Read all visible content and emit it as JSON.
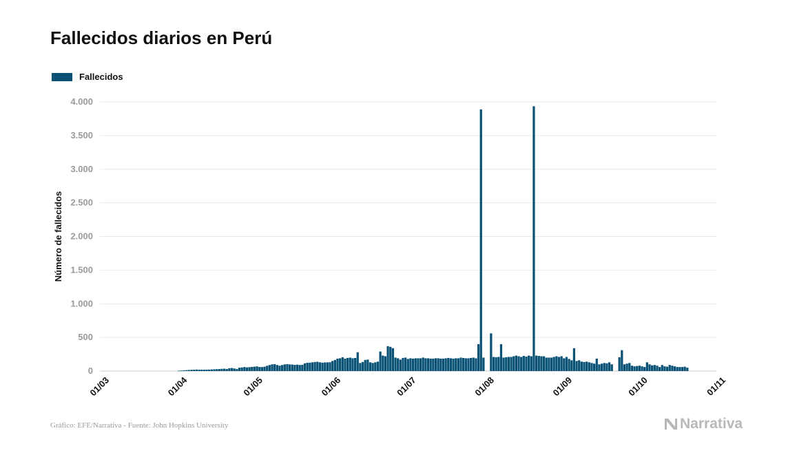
{
  "header": {
    "title": "Fallecidos diarios en Perú"
  },
  "legend": {
    "label": "Fallecidos",
    "color": "#0a5275"
  },
  "footer": {
    "source": "Gráfico: EFE/Narrativa - Fuente: John Hopkins University",
    "brand": "Narrativa",
    "brand_icon": "narrativa-logo-icon"
  },
  "chart_data": {
    "type": "bar",
    "title": "Fallecidos diarios en Perú",
    "xlabel": "",
    "ylabel": "Número de fallecidos",
    "ylim": [
      0,
      4000
    ],
    "yticks": [
      0,
      500,
      1000,
      1500,
      2000,
      2500,
      3000,
      3500,
      4000
    ],
    "ytick_labels": [
      "0",
      "500",
      "1.000",
      "1.500",
      "2.000",
      "2.500",
      "3.000",
      "3.500",
      "4.000"
    ],
    "xticks": [
      {
        "label": "01/03",
        "date": "2020-03-01"
      },
      {
        "label": "01/04",
        "date": "2020-04-01"
      },
      {
        "label": "01/05",
        "date": "2020-05-01"
      },
      {
        "label": "01/06",
        "date": "2020-06-01"
      },
      {
        "label": "01/07",
        "date": "2020-07-01"
      },
      {
        "label": "01/08",
        "date": "2020-08-01"
      },
      {
        "label": "01/09",
        "date": "2020-09-01"
      },
      {
        "label": "01/10",
        "date": "2020-10-01"
      },
      {
        "label": "01/11",
        "date": "2020-11-01"
      }
    ],
    "grid": true,
    "legend_position": "top-left",
    "series": [
      {
        "name": "Fallecidos",
        "color": "#0a5275",
        "start_date": "2020-03-01",
        "values": [
          0,
          0,
          0,
          0,
          0,
          0,
          0,
          0,
          0,
          0,
          0,
          0,
          0,
          0,
          0,
          0,
          0,
          0,
          0,
          0,
          0,
          0,
          0,
          0,
          0,
          0,
          0,
          0,
          0,
          0,
          0,
          5,
          8,
          11,
          14,
          16,
          19,
          20,
          22,
          20,
          20,
          20,
          21,
          22,
          24,
          27,
          28,
          30,
          33,
          35,
          30,
          42,
          45,
          38,
          30,
          50,
          54,
          60,
          55,
          58,
          62,
          65,
          70,
          60,
          60,
          65,
          78,
          90,
          100,
          103,
          90,
          80,
          90,
          100,
          103,
          98,
          97,
          92,
          95,
          90,
          93,
          115,
          123,
          125,
          130,
          135,
          138,
          130,
          125,
          128,
          130,
          131,
          150,
          165,
          185,
          190,
          205,
          185,
          195,
          200,
          190,
          195,
          280,
          120,
          135,
          165,
          170,
          130,
          120,
          130,
          140,
          290,
          230,
          220,
          370,
          360,
          340,
          200,
          190,
          170,
          195,
          200,
          180,
          190,
          185,
          190,
          190,
          190,
          200,
          190,
          190,
          185,
          185,
          190,
          190,
          185,
          185,
          190,
          195,
          190,
          185,
          190,
          190,
          200,
          195,
          190,
          190,
          195,
          200,
          190,
          400,
          3888,
          200,
          0,
          0,
          560,
          210,
          205,
          210,
          400,
          200,
          205,
          210,
          210,
          220,
          230,
          220,
          210,
          225,
          215,
          230,
          220,
          3935,
          230,
          225,
          220,
          220,
          200,
          200,
          200,
          210,
          220,
          210,
          220,
          190,
          210,
          180,
          160,
          340,
          150,
          160,
          140,
          135,
          140,
          130,
          120,
          110,
          185,
          100,
          110,
          120,
          115,
          130,
          100,
          0,
          0,
          205,
          310,
          100,
          110,
          120,
          80,
          70,
          75,
          80,
          70,
          60,
          130,
          100,
          85,
          90,
          80,
          60,
          90,
          70,
          65,
          90,
          80,
          70,
          60,
          60,
          60,
          65,
          50
        ]
      }
    ]
  }
}
